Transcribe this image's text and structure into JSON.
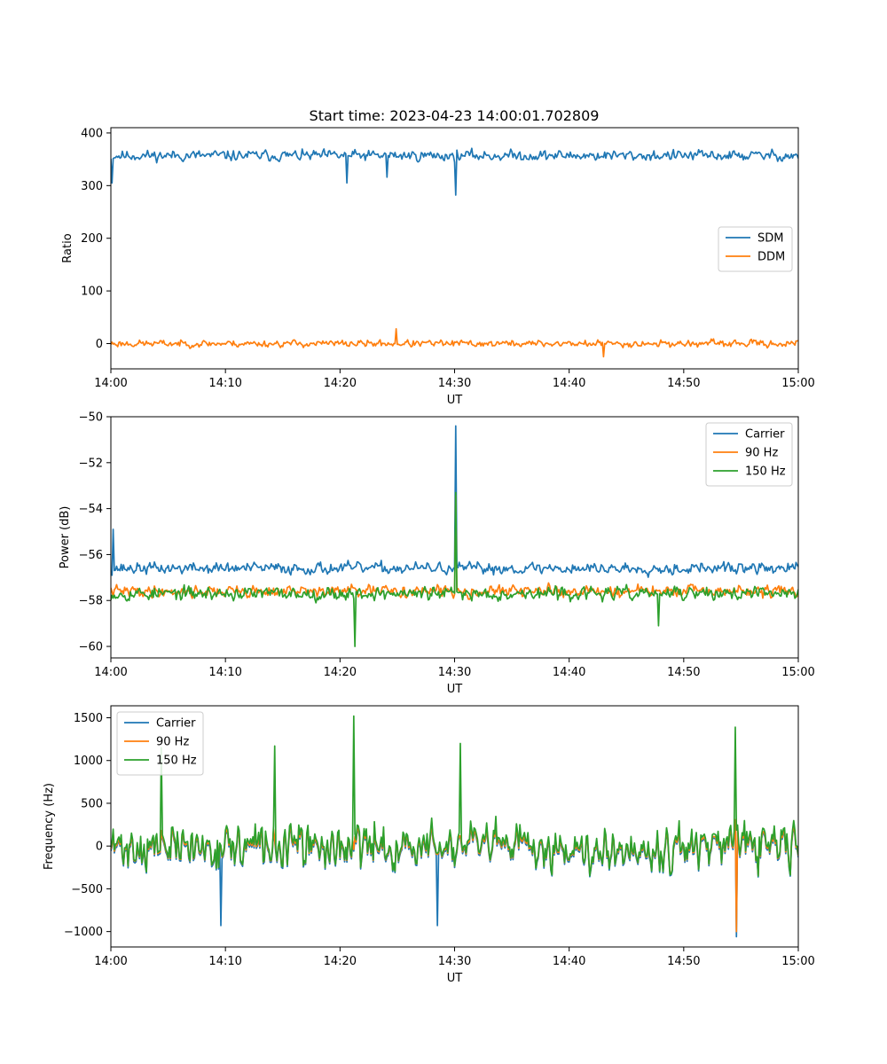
{
  "figure": {
    "title": "Start time: 2023-04-23 14:00:01.702809"
  },
  "chart_data": [
    {
      "type": "line",
      "title": "Start time: 2023-04-23 14:00:01.702809",
      "xlabel": "UT",
      "ylabel": "Ratio",
      "xlim": [
        "14:00",
        "15:00"
      ],
      "ylim": [
        -48,
        410
      ],
      "xticks": [
        "14:00",
        "14:10",
        "14:20",
        "14:30",
        "14:40",
        "14:50",
        "15:00"
      ],
      "yticks": [
        0,
        100,
        200,
        300,
        400
      ],
      "yticklabels": [
        "0",
        "100",
        "200",
        "300",
        "400"
      ],
      "legend_position": "center-right",
      "grid": false,
      "series": [
        {
          "name": "SDM",
          "color": "#1f77b4",
          "base": 357,
          "noise": 14,
          "seed": 11,
          "spikes": [
            {
              "x": 30.1,
              "y": 282
            },
            {
              "x": 20.6,
              "y": 305
            },
            {
              "x": 0.1,
              "y": 305
            },
            {
              "x": 24.1,
              "y": 316
            }
          ]
        },
        {
          "name": "DDM",
          "color": "#ff7f0e",
          "base": 0,
          "noise": 9,
          "seed": 23,
          "spikes": [
            {
              "x": 24.9,
              "y": 28
            },
            {
              "x": 43.0,
              "y": -25
            }
          ]
        }
      ]
    },
    {
      "type": "line",
      "title": "",
      "xlabel": "UT",
      "ylabel": "Power (dB)",
      "xlim": [
        "14:00",
        "15:00"
      ],
      "ylim": [
        -60.5,
        -50.0
      ],
      "xticks": [
        "14:00",
        "14:10",
        "14:20",
        "14:30",
        "14:40",
        "14:50",
        "15:00"
      ],
      "yticks": [
        -60,
        -58,
        -56,
        -54,
        -52,
        -50
      ],
      "yticklabels": [
        "−60",
        "−58",
        "−56",
        "−54",
        "−52",
        "−50"
      ],
      "legend_position": "top-right",
      "grid": false,
      "series": [
        {
          "name": "Carrier",
          "color": "#1f77b4",
          "base": -56.6,
          "noise": 0.35,
          "seed": 37,
          "spikes": [
            {
              "x": 0.2,
              "y": -54.9
            },
            {
              "x": 30.1,
              "y": -50.4
            }
          ]
        },
        {
          "name": "90 Hz",
          "color": "#ff7f0e",
          "base": -57.6,
          "noise": 0.35,
          "seed": 41,
          "spikes": [
            {
              "x": 30.1,
              "y": -53.4
            }
          ]
        },
        {
          "name": "150 Hz",
          "color": "#2ca02c",
          "base": -57.7,
          "noise": 0.4,
          "seed": 53,
          "spikes": [
            {
              "x": 21.3,
              "y": -60.0
            },
            {
              "x": 30.1,
              "y": -53.3
            },
            {
              "x": 47.8,
              "y": -59.1
            }
          ]
        }
      ]
    },
    {
      "type": "line",
      "title": "",
      "xlabel": "UT",
      "ylabel": "Frequency (Hz)",
      "xlim": [
        "14:00",
        "15:00"
      ],
      "ylim": [
        -1180,
        1640
      ],
      "xticks": [
        "14:00",
        "14:10",
        "14:20",
        "14:30",
        "14:40",
        "14:50",
        "15:00"
      ],
      "yticks": [
        -1000,
        -500,
        0,
        500,
        1000,
        1500
      ],
      "yticklabels": [
        "−1000",
        "−500",
        "0",
        "500",
        "1000",
        "1500"
      ],
      "legend_position": "top-left",
      "grid": false,
      "series": [
        {
          "name": "Carrier",
          "color": "#1f77b4",
          "base": -40,
          "noise": 330,
          "seed": 71,
          "spikes": [
            {
              "x": 54.6,
              "y": -1060
            },
            {
              "x": 28.5,
              "y": -930
            },
            {
              "x": 9.6,
              "y": -930
            }
          ]
        },
        {
          "name": "90 Hz",
          "color": "#ff7f0e",
          "base": -20,
          "noise": 330,
          "seed": 71,
          "spikes": [
            {
              "x": 54.6,
              "y": -1000
            }
          ]
        },
        {
          "name": "150 Hz",
          "color": "#2ca02c",
          "base": 0,
          "noise": 360,
          "seed": 71,
          "spikes": [
            {
              "x": 21.2,
              "y": 1520
            },
            {
              "x": 54.5,
              "y": 1390
            },
            {
              "x": 14.3,
              "y": 1170
            },
            {
              "x": 30.5,
              "y": 1200
            },
            {
              "x": 4.4,
              "y": 1150
            }
          ]
        }
      ]
    }
  ]
}
